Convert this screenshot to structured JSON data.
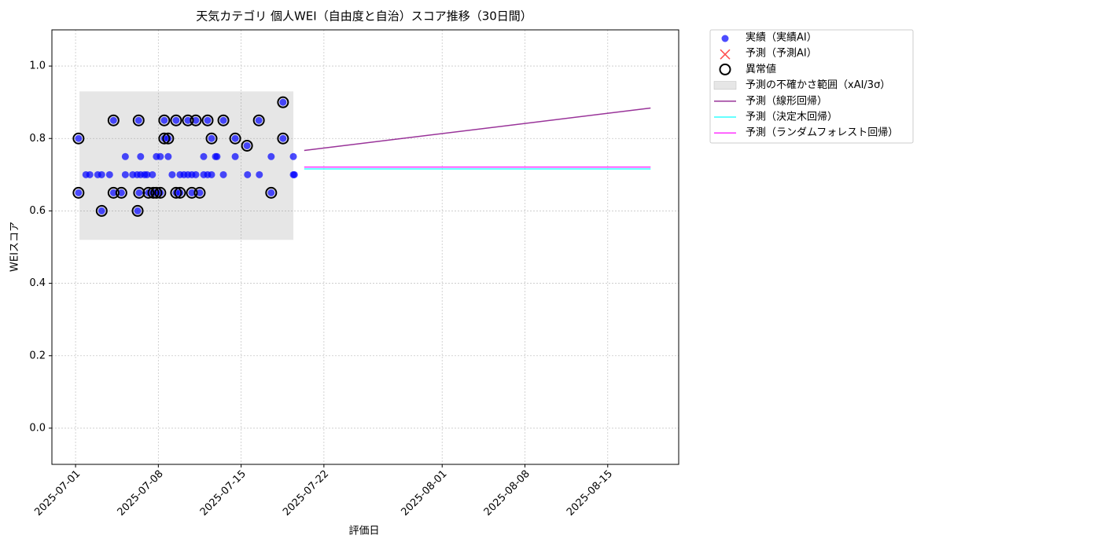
{
  "chart_data": {
    "type": "scatter",
    "title": "天気カテゴリ 個人WEI（自由度と自治）スコア推移（30日間）",
    "xlabel": "評価日",
    "ylabel": "WEIスコア",
    "xlim": [
      "2025-06-29",
      "2025-08-21"
    ],
    "ylim": [
      -0.1,
      1.1
    ],
    "xticks": [
      "2025-07-01",
      "2025-07-08",
      "2025-07-15",
      "2025-07-22",
      "2025-08-01",
      "2025-08-08",
      "2025-08-15"
    ],
    "yticks": [
      {
        "value": 0,
        "label": "0.0"
      },
      0.2,
      0.4,
      0.6,
      0.8,
      {
        "value": 1,
        "label": "1.0"
      }
    ],
    "grid": true,
    "legend": "outside upper right",
    "band": {
      "name": "予測の不確かさ範囲（xAI/3σ）",
      "color": "#808080",
      "x": [
        "2025-07-01T08",
        "2025-07-19T10"
      ],
      "low": 0.52,
      "high": 0.93
    },
    "series": [
      {
        "name": "実績（実績AI）",
        "kind": "scatter",
        "color": "#0000ff",
        "x": [
          "2025-07-01T06",
          "2025-07-01T06",
          "2025-07-01T21",
          "2025-07-02T05",
          "2025-07-02T21",
          "2025-07-03T05",
          "2025-07-03T05",
          "2025-07-03T21",
          "2025-07-04T05",
          "2025-07-04T05",
          "2025-07-04T21",
          "2025-07-05T05",
          "2025-07-05T05",
          "2025-07-05T20",
          "2025-07-06T05",
          "2025-07-06T06",
          "2025-07-06T08",
          "2025-07-06T09",
          "2025-07-06T12",
          "2025-07-06T12",
          "2025-07-06T20",
          "2025-07-07T01",
          "2025-07-07T04",
          "2025-07-07T12",
          "2025-07-07T14",
          "2025-07-07T20",
          "2025-07-07T20",
          "2025-07-08T04",
          "2025-07-08T04",
          "2025-07-08T12",
          "2025-07-08T12",
          "2025-07-08T20",
          "2025-07-08T20",
          "2025-07-09T04",
          "2025-07-09T12",
          "2025-07-09T12",
          "2025-07-09T20",
          "2025-07-09T20",
          "2025-07-10T04",
          "2025-07-10T12",
          "2025-07-10T12",
          "2025-07-10T20",
          "2025-07-10T20",
          "2025-07-11T04",
          "2025-07-11T04",
          "2025-07-11T12",
          "2025-07-11T20",
          "2025-07-11T20",
          "2025-07-12T04",
          "2025-07-12T04",
          "2025-07-12T12",
          "2025-07-12T12",
          "2025-07-12T20",
          "2025-07-12T23",
          "2025-07-13T12",
          "2025-07-13T12",
          "2025-07-14T12",
          "2025-07-14T12",
          "2025-07-15T12",
          "2025-07-15T13",
          "2025-07-16T12",
          "2025-07-16T13",
          "2025-07-17T13",
          "2025-07-17T13",
          "2025-07-18T13",
          "2025-07-18T13",
          "2025-07-19T10",
          "2025-07-19T10",
          "2025-07-19T12"
        ],
        "values": [
          0.8,
          0.65,
          0.7,
          0.7,
          0.7,
          0.6,
          0.7,
          0.7,
          0.85,
          0.65,
          0.65,
          0.75,
          0.7,
          0.7,
          0.7,
          0.6,
          0.85,
          0.65,
          0.75,
          0.7,
          0.7,
          0.7,
          0.65,
          0.7,
          0.65,
          0.65,
          0.75,
          0.65,
          0.75,
          0.85,
          0.8,
          0.8,
          0.75,
          0.7,
          0.85,
          0.65,
          0.65,
          0.7,
          0.7,
          0.85,
          0.7,
          0.65,
          0.7,
          0.85,
          0.7,
          0.65,
          0.75,
          0.7,
          0.85,
          0.7,
          0.8,
          0.7,
          0.75,
          0.75,
          0.85,
          0.7,
          0.8,
          0.75,
          0.78,
          0.7,
          0.85,
          0.7,
          0.65,
          0.75,
          0.9,
          0.8,
          0.75,
          0.7,
          0.7
        ]
      },
      {
        "name": "予測（予測AI）",
        "kind": "cross",
        "color": "#ff0000",
        "x": [],
        "values": []
      },
      {
        "name": "異常値",
        "kind": "ring",
        "color": "#000000",
        "x": [
          "2025-07-01T06",
          "2025-07-01T06",
          "2025-07-03T05",
          "2025-07-04T05",
          "2025-07-04T05",
          "2025-07-04T21",
          "2025-07-06T06",
          "2025-07-06T08",
          "2025-07-06T09",
          "2025-07-07T04",
          "2025-07-07T14",
          "2025-07-07T20",
          "2025-07-08T04",
          "2025-07-08T12",
          "2025-07-08T12",
          "2025-07-08T20",
          "2025-07-09T12",
          "2025-07-09T12",
          "2025-07-09T20",
          "2025-07-10T12",
          "2025-07-10T20",
          "2025-07-11T04",
          "2025-07-11T12",
          "2025-07-12T04",
          "2025-07-12T12",
          "2025-07-13T12",
          "2025-07-14T12",
          "2025-07-15T12",
          "2025-07-16T12",
          "2025-07-17T13",
          "2025-07-18T13",
          "2025-07-18T13"
        ],
        "values": [
          0.8,
          0.65,
          0.6,
          0.85,
          0.65,
          0.65,
          0.6,
          0.85,
          0.65,
          0.65,
          0.65,
          0.65,
          0.65,
          0.85,
          0.8,
          0.8,
          0.85,
          0.65,
          0.65,
          0.85,
          0.65,
          0.85,
          0.65,
          0.85,
          0.8,
          0.85,
          0.8,
          0.78,
          0.85,
          0.65,
          0.9,
          0.8
        ]
      },
      {
        "name": "予測（線形回帰）",
        "kind": "line",
        "color": "#800080",
        "x": [
          "2025-07-20T08",
          "2025-08-18T15"
        ],
        "values": [
          0.767,
          0.884
        ]
      },
      {
        "name": "予測（決定木回帰）",
        "kind": "line",
        "color": "#00ffff",
        "x": [
          "2025-07-20T08",
          "2025-08-18T15"
        ],
        "values": [
          0.716,
          0.716
        ]
      },
      {
        "name": "予測（ランダムフォレスト回帰）",
        "kind": "line",
        "color": "#ff00ff",
        "x": [
          "2025-07-20T08",
          "2025-08-18T15"
        ],
        "values": [
          0.721,
          0.721
        ]
      }
    ]
  }
}
